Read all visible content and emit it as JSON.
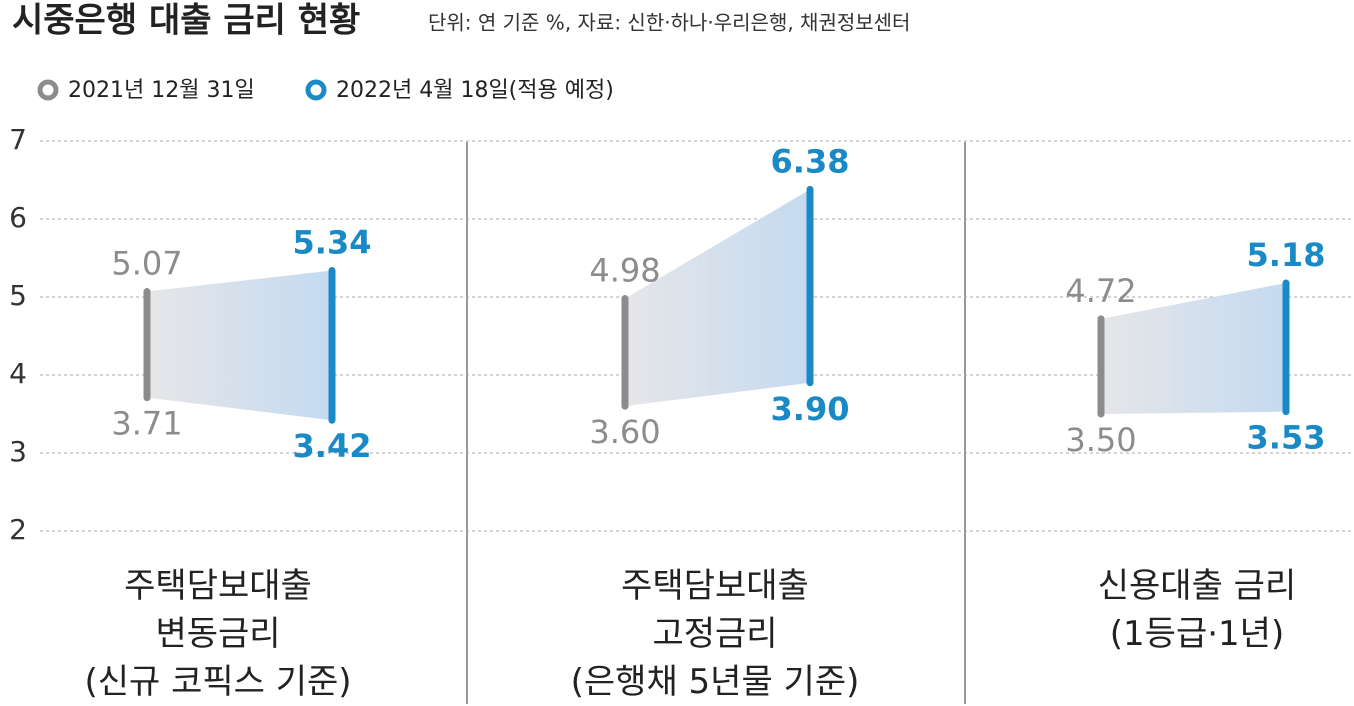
{
  "chart_data": {
    "type": "range",
    "title": "시중은행 대출 금리 현황",
    "subtitle": "단위: 연 기준 %, 자료: 신한·하나·우리은행, 채권정보센터",
    "categories": [
      "주택담보대출\n변동금리\n(신규 코픽스 기준)",
      "주택담보대출\n고정금리\n(은행채 5년물 기준)",
      "신용대출 금리\n(1등급·1년)"
    ],
    "series": [
      {
        "name": "2021년 12월 31일",
        "color": "#8c8c8c",
        "low": [
          3.71,
          3.6,
          3.5
        ],
        "high": [
          5.07,
          4.98,
          4.72
        ],
        "low_labels": [
          "3.71",
          "3.60",
          "3.50"
        ],
        "high_labels": [
          "5.07",
          "4.98",
          "4.72"
        ]
      },
      {
        "name": "2022년 4월 18일(적용 예정)",
        "color": "#1a8ac6",
        "low": [
          3.42,
          3.9,
          3.53
        ],
        "high": [
          5.34,
          6.38,
          5.18
        ],
        "low_labels": [
          "3.42",
          "3.90",
          "3.53"
        ],
        "high_labels": [
          "5.34",
          "6.38",
          "5.18"
        ]
      }
    ],
    "ylim": [
      2,
      7
    ],
    "yticks": [
      2,
      3,
      4,
      5,
      6,
      7
    ],
    "grid": true
  }
}
